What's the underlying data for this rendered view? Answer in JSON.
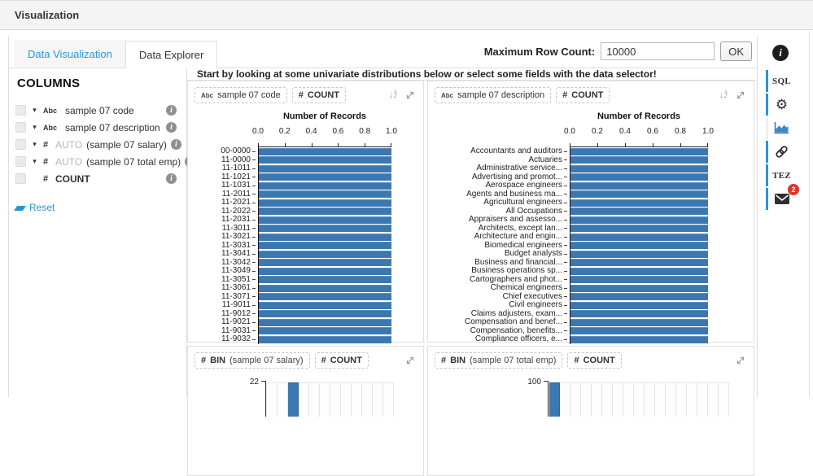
{
  "window": {
    "title": "Visualization"
  },
  "tabs": [
    {
      "label": "Data Visualization",
      "active": false
    },
    {
      "label": "Data Explorer",
      "active": true
    }
  ],
  "max_row": {
    "label": "Maximum Row Count:",
    "value": "10000",
    "ok_label": "OK"
  },
  "sidebar": {
    "heading": "COLUMNS",
    "columns": [
      {
        "type": "Abc",
        "caret": true,
        "auto": "",
        "name": "sample 07 code",
        "bold": false
      },
      {
        "type": "Abc",
        "caret": true,
        "auto": "",
        "name": "sample 07 description",
        "bold": false
      },
      {
        "type": "#",
        "caret": true,
        "auto": "AUTO",
        "name": "(sample 07 salary)",
        "bold": false
      },
      {
        "type": "#",
        "caret": true,
        "auto": "AUTO",
        "name": "(sample 07 total emp)",
        "bold": false
      },
      {
        "type": "#",
        "caret": false,
        "auto": "",
        "name": "COUNT",
        "bold": true
      }
    ],
    "reset_label": "Reset"
  },
  "message": "Start by looking at some univariate distributions below or select some fields with the data selector!",
  "icons": {
    "info": "i",
    "gear": "⚙",
    "sort_arrow": "↓",
    "sort_top": "A",
    "sort_bottom": "Z",
    "caret": "▾"
  },
  "right_rail": {
    "sql_label": "SQL",
    "tez_label": "TEZ",
    "badge": "2"
  },
  "chart_data": [
    {
      "type": "bar",
      "orientation": "horizontal",
      "pills": [
        {
          "icon": "Abc",
          "label": "sample 07 code",
          "bold": false,
          "suffix": ""
        },
        {
          "icon": "#",
          "label": "COUNT",
          "bold": true,
          "suffix": ""
        }
      ],
      "header_icons": [
        "sort",
        "expand"
      ],
      "title": "Number of Records",
      "xlabel": "Number of Records",
      "x_ticks": [
        "0.0",
        "0.2",
        "0.4",
        "0.6",
        "0.8",
        "1.0"
      ],
      "xlim": [
        0,
        1
      ],
      "bar_color": "#3c77b0",
      "categories": [
        "00-0000",
        "11-0000",
        "11-1011",
        "11-1021",
        "11-1031",
        "11-2011",
        "11-2021",
        "11-2022",
        "11-2031",
        "11-3011",
        "11-3021",
        "11-3031",
        "11-3041",
        "11-3042",
        "11-3049",
        "11-3051",
        "11-3061",
        "11-3071",
        "11-9011",
        "11-9012",
        "11-9021",
        "11-9031",
        "11-9032"
      ],
      "values": [
        1,
        1,
        1,
        1,
        1,
        1,
        1,
        1,
        1,
        1,
        1,
        1,
        1,
        1,
        1,
        1,
        1,
        1,
        1,
        1,
        1,
        1,
        1
      ]
    },
    {
      "type": "bar",
      "orientation": "horizontal",
      "pills": [
        {
          "icon": "Abc",
          "label": "sample 07 description",
          "bold": false,
          "suffix": ""
        },
        {
          "icon": "#",
          "label": "COUNT",
          "bold": true,
          "suffix": ""
        }
      ],
      "header_icons": [
        "sort",
        "expand"
      ],
      "title": "Number of Records",
      "xlabel": "Number of Records",
      "x_ticks": [
        "0.0",
        "0.2",
        "0.4",
        "0.6",
        "0.8",
        "1.0"
      ],
      "xlim": [
        0,
        1
      ],
      "bar_color": "#3c77b0",
      "categories": [
        "Accountants and auditors",
        "Actuaries",
        "Administrative service...",
        "Advertising and promot...",
        "Aerospace engineers",
        "Agents and business ma...",
        "Agricultural engineers",
        "All Occupations",
        "Appraisers and assesso...",
        "Architects, except lan...",
        "Architecture and engin...",
        "Biomedical engineers",
        "Budget analysts",
        "Business and financial...",
        "Business operations sp...",
        "Cartographers and phot...",
        "Chemical engineers",
        "Chief executives",
        "Civil engineers",
        "Claims adjusters, exam...",
        "Compensation and benef...",
        "Compensation, benefits...",
        "Compliance officers, e..."
      ],
      "values": [
        1,
        1,
        1,
        1,
        1,
        1,
        1,
        1,
        1,
        1,
        1,
        1,
        1,
        1,
        1,
        1,
        1,
        1,
        1,
        1,
        1,
        1,
        1
      ]
    },
    {
      "type": "bar",
      "orientation": "vertical",
      "partial": true,
      "pills": [
        {
          "icon": "#",
          "label": "BIN",
          "bold": true,
          "suffix": "(sample 07 salary)"
        },
        {
          "icon": "#",
          "label": "COUNT",
          "bold": true,
          "suffix": ""
        }
      ],
      "header_icons": [
        "expand"
      ],
      "y_axis_top_label": "22",
      "ylim": [
        0,
        22
      ],
      "bins": 12,
      "highlighted_bin": 2,
      "bar_color": "#3c77b0"
    },
    {
      "type": "bar",
      "orientation": "vertical",
      "partial": true,
      "pills": [
        {
          "icon": "#",
          "label": "BIN",
          "bold": true,
          "suffix": "(sample 07 total emp)"
        },
        {
          "icon": "#",
          "label": "COUNT",
          "bold": true,
          "suffix": ""
        }
      ],
      "header_icons": [
        "expand"
      ],
      "y_axis_top_label": "100",
      "ylim": [
        0,
        100
      ],
      "bins": 17,
      "highlighted_bin": 0,
      "bar_color": "#3c77b0"
    }
  ]
}
